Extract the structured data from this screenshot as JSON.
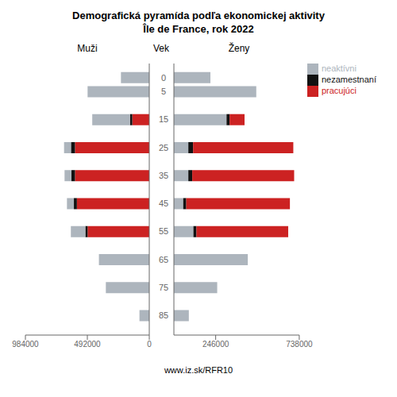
{
  "title": "Demografická pyramída podľa ekonomickej aktivity",
  "subtitle": "Île de France, rok 2022",
  "annotations": [
    "www.iz.sk/RFR10"
  ],
  "chart_data": [
    {
      "type": "bar",
      "orientation": "horizontal",
      "stacked": true,
      "grid": false,
      "title": "Muži",
      "ylabel": "Vek",
      "y": [
        0,
        5,
        15,
        25,
        35,
        45,
        55,
        65,
        75,
        85
      ],
      "ylim": [
        -5,
        92
      ],
      "yticks": [
        0,
        5,
        15,
        25,
        35,
        45,
        55,
        65,
        75,
        85
      ],
      "xlim": [
        0,
        984000
      ],
      "xticks": [
        0,
        492000,
        984000
      ],
      "series": [
        {
          "name": "pracujúci",
          "color": "#cc2222",
          "values": [
            0,
            0,
            135000,
            590000,
            590000,
            575000,
            490000,
            0,
            0,
            0
          ]
        },
        {
          "name": "nezamestnaní",
          "color": "#111111",
          "values": [
            0,
            0,
            18000,
            32000,
            28000,
            24000,
            18000,
            0,
            0,
            0
          ]
        },
        {
          "name": "neaktívni",
          "color": "#adb5bd",
          "values": [
            225000,
            490000,
            300000,
            55000,
            55000,
            55000,
            115000,
            400000,
            345000,
            78000
          ]
        }
      ]
    },
    {
      "type": "bar",
      "orientation": "horizontal",
      "stacked": true,
      "grid": false,
      "title": "Ženy",
      "tick_labels": "x",
      "legend": "right",
      "y": [
        0,
        5,
        15,
        25,
        35,
        45,
        55,
        65,
        75,
        85
      ],
      "ylim": [
        -5,
        92
      ],
      "xlim": [
        0,
        738000
      ],
      "xticks": [
        0,
        246000,
        738000
      ],
      "series": [
        {
          "name": "neaktívni",
          "color": "#adb5bd",
          "values": [
            215000,
            485000,
            310000,
            85000,
            85000,
            55000,
            115000,
            435000,
            255000,
            88000
          ]
        },
        {
          "name": "nezamestnaní",
          "color": "#111111",
          "values": [
            0,
            0,
            18000,
            28000,
            23000,
            18000,
            18000,
            0,
            0,
            0
          ]
        },
        {
          "name": "pracujúci",
          "color": "#cc2222",
          "values": [
            0,
            0,
            88000,
            590000,
            600000,
            610000,
            540000,
            0,
            0,
            0
          ]
        }
      ]
    }
  ]
}
